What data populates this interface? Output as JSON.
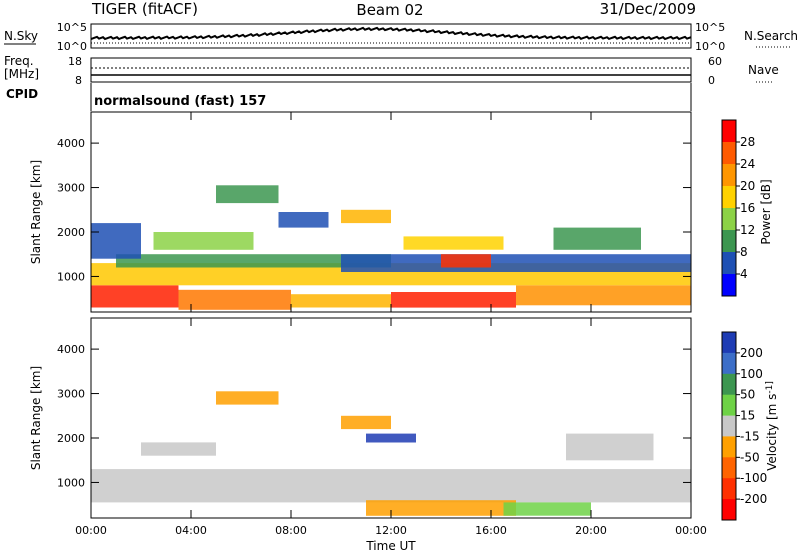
{
  "header": {
    "radar": "TIGER (fitACF)",
    "beam": "Beam 02",
    "date": "31/Dec/2009"
  },
  "side_labels": {
    "nsky": "N.Sky",
    "nsearch": "N.Search",
    "freq_line1": "Freq.",
    "freq_line2": "[MHz]",
    "nave": "Nave",
    "cpid": "CPID"
  },
  "cpid_text": "normalsound (fast) 157",
  "noise_axis": {
    "left_ticks": [
      "10^5",
      "10^0"
    ],
    "right_ticks": [
      "10^5",
      "10^0"
    ]
  },
  "freq_axis": {
    "left_ticks": [
      "18",
      "8"
    ],
    "right_ticks": [
      "60",
      "0"
    ]
  },
  "chart_data": [
    {
      "type": "heatmap",
      "panel": "power",
      "ylabel": "Slant Range [km]",
      "xlabel": "Time UT",
      "x_ticks": [
        "00:00",
        "04:00",
        "08:00",
        "12:00",
        "16:00",
        "20:00",
        "00:00"
      ],
      "x_range_hours": [
        0,
        24
      ],
      "y_range_km": [
        200,
        4700
      ],
      "y_ticks": [
        1000,
        2000,
        3000,
        4000
      ],
      "colorbar": {
        "label": "Power [dB]",
        "ticks": [
          "28",
          "24",
          "20",
          "16",
          "12",
          "8",
          "4"
        ],
        "colors": [
          "#ff0000",
          "#ff5a00",
          "#ff9600",
          "#ffd200",
          "#8cd246",
          "#3c9650",
          "#1e50b4",
          "#0000ff"
        ]
      },
      "bands": [
        {
          "t": [
            0.0,
            3.5
          ],
          "r": [
            300,
            800
          ],
          "color": "#ff2000"
        },
        {
          "t": [
            3.5,
            8.0
          ],
          "r": [
            250,
            700
          ],
          "color": "#ff7800"
        },
        {
          "t": [
            8.0,
            12.0
          ],
          "r": [
            300,
            600
          ],
          "color": "#ffb400"
        },
        {
          "t": [
            12.0,
            17.0
          ],
          "r": [
            300,
            650
          ],
          "color": "#ff2000"
        },
        {
          "t": [
            17.0,
            24.0
          ],
          "r": [
            350,
            800
          ],
          "color": "#ff9000"
        },
        {
          "t": [
            0.0,
            24.0
          ],
          "r": [
            800,
            1300
          ],
          "color": "#ffc800"
        },
        {
          "t": [
            1.0,
            12.0
          ],
          "r": [
            1200,
            1500
          ],
          "color": "#3c9650"
        },
        {
          "t": [
            10.0,
            24.0
          ],
          "r": [
            1100,
            1500
          ],
          "color": "#1e50b4"
        },
        {
          "t": [
            14.0,
            16.0
          ],
          "r": [
            1200,
            1500
          ],
          "color": "#ff3000"
        },
        {
          "t": [
            12.5,
            16.5
          ],
          "r": [
            1600,
            1900
          ],
          "color": "#ffd200"
        },
        {
          "t": [
            2.5,
            6.5
          ],
          "r": [
            1600,
            2000
          ],
          "color": "#8cd246"
        },
        {
          "t": [
            5.0,
            7.5
          ],
          "r": [
            2650,
            3050
          ],
          "color": "#3c9650"
        },
        {
          "t": [
            10.0,
            12.0
          ],
          "r": [
            2200,
            2500
          ],
          "color": "#ffb400"
        },
        {
          "t": [
            18.5,
            22.0
          ],
          "r": [
            1600,
            2100
          ],
          "color": "#3c9650"
        },
        {
          "t": [
            0.0,
            2.0
          ],
          "r": [
            1400,
            2200
          ],
          "color": "#1e50b4"
        },
        {
          "t": [
            7.5,
            9.5
          ],
          "r": [
            2100,
            2450
          ],
          "color": "#1e50b4"
        }
      ]
    },
    {
      "type": "heatmap",
      "panel": "velocity",
      "ylabel": "Slant Range [km]",
      "xlabel": "Time UT",
      "x_ticks": [
        "00:00",
        "04:00",
        "08:00",
        "12:00",
        "16:00",
        "20:00",
        "00:00"
      ],
      "x_range_hours": [
        0,
        24
      ],
      "y_range_km": [
        200,
        4700
      ],
      "y_ticks": [
        1000,
        2000,
        3000,
        4000
      ],
      "colorbar": {
        "label": "Velocity [m s^-1]",
        "ticks": [
          "200",
          "100",
          "50",
          "15",
          "-15",
          "-50",
          "-100",
          "-200"
        ],
        "colors": [
          "#1e3cb4",
          "#3c6ec8",
          "#3c9650",
          "#6ed246",
          "#c8c8c8",
          "#ffa000",
          "#ff6400",
          "#ff3000",
          "#ff0000"
        ]
      },
      "bands": [
        {
          "t": [
            0.0,
            24.0
          ],
          "r": [
            550,
            1300
          ],
          "color": "#c8c8c8"
        },
        {
          "t": [
            11.0,
            17.0
          ],
          "r": [
            250,
            600
          ],
          "color": "#ffa000"
        },
        {
          "t": [
            16.5,
            20.0
          ],
          "r": [
            250,
            550
          ],
          "color": "#6ed246"
        },
        {
          "t": [
            5.0,
            7.5
          ],
          "r": [
            2750,
            3050
          ],
          "color": "#ffa000"
        },
        {
          "t": [
            10.0,
            12.0
          ],
          "r": [
            2200,
            2500
          ],
          "color": "#ffa000"
        },
        {
          "t": [
            11.0,
            13.0
          ],
          "r": [
            1900,
            2100
          ],
          "color": "#1e3cb4"
        },
        {
          "t": [
            19.0,
            22.5
          ],
          "r": [
            1500,
            2100
          ],
          "color": "#c8c8c8"
        },
        {
          "t": [
            2.0,
            5.0
          ],
          "r": [
            1600,
            1900
          ],
          "color": "#c8c8c8"
        }
      ]
    }
  ]
}
